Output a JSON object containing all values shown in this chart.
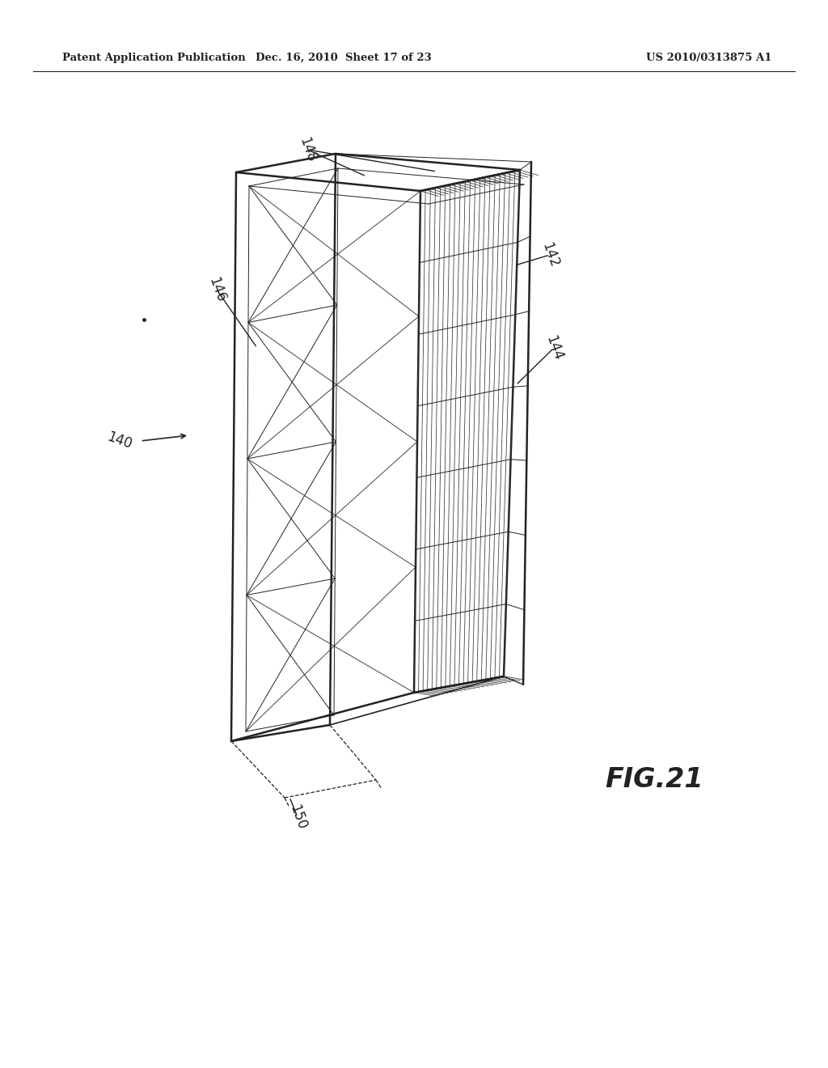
{
  "header_left": "Patent Application Publication",
  "header_mid": "Dec. 16, 2010  Sheet 17 of 23",
  "header_right": "US 2010/0313875 A1",
  "fig_label": "FIG.21",
  "bg_color": "#ffffff",
  "line_color": "#222222"
}
